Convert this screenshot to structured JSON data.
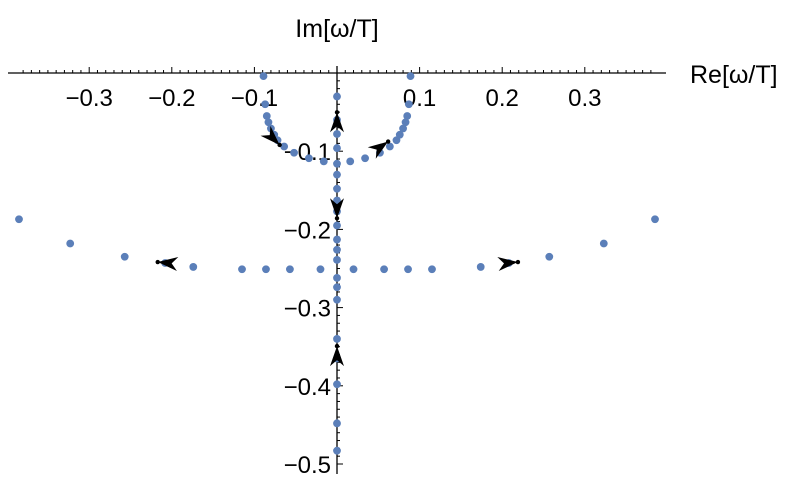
{
  "chart_data": {
    "type": "scatter",
    "xlabel": "Re[ω/T]",
    "ylabel": "Im[ω/T]",
    "xlim": [
      -0.39,
      0.39
    ],
    "ylim": [
      -0.5,
      0.0
    ],
    "x_ticks": [
      {
        "value": -0.3,
        "label": "−0.3"
      },
      {
        "value": -0.2,
        "label": "−0.2"
      },
      {
        "value": -0.1,
        "label": "−0.1"
      },
      {
        "value": 0.1,
        "label": "0.1"
      },
      {
        "value": 0.2,
        "label": "0.2"
      },
      {
        "value": 0.3,
        "label": "0.3"
      }
    ],
    "y_ticks": [
      {
        "value": -0.1,
        "label": "−0.1"
      },
      {
        "value": -0.2,
        "label": "−0.2"
      },
      {
        "value": -0.3,
        "label": "−0.3"
      },
      {
        "value": -0.4,
        "label": "−0.4"
      },
      {
        "value": -0.5,
        "label": "−0.5"
      }
    ],
    "point_color": "#5b7fb9",
    "arrow_color": "#000000",
    "grid": false,
    "series": [
      {
        "values": [
          {
            "x": -0.089,
            "y": -0.004
          },
          {
            "x": -0.087,
            "y": -0.04
          },
          {
            "x": -0.085,
            "y": -0.055
          },
          {
            "x": -0.083,
            "y": -0.063
          },
          {
            "x": -0.08,
            "y": -0.071
          },
          {
            "x": -0.076,
            "y": -0.079
          },
          {
            "x": -0.072,
            "y": -0.086
          },
          {
            "x": -0.064,
            "y": -0.094
          },
          {
            "x": -0.052,
            "y": -0.102
          },
          {
            "x": -0.034,
            "y": -0.109
          },
          {
            "x": -0.016,
            "y": -0.113
          },
          {
            "x": 0.0,
            "y": -0.116
          },
          {
            "x": 0.016,
            "y": -0.113
          },
          {
            "x": 0.034,
            "y": -0.109
          },
          {
            "x": 0.052,
            "y": -0.102
          },
          {
            "x": 0.064,
            "y": -0.094
          },
          {
            "x": 0.072,
            "y": -0.086
          },
          {
            "x": 0.076,
            "y": -0.079
          },
          {
            "x": 0.08,
            "y": -0.071
          },
          {
            "x": 0.083,
            "y": -0.063
          },
          {
            "x": 0.085,
            "y": -0.055
          },
          {
            "x": 0.087,
            "y": -0.04
          },
          {
            "x": 0.089,
            "y": -0.004
          },
          {
            "x": 0.0,
            "y": -0.03
          },
          {
            "x": 0.0,
            "y": -0.06
          },
          {
            "x": 0.0,
            "y": -0.078
          },
          {
            "x": 0.0,
            "y": -0.096
          },
          {
            "x": 0.0,
            "y": -0.13
          },
          {
            "x": 0.0,
            "y": -0.148
          },
          {
            "x": 0.0,
            "y": -0.163
          },
          {
            "x": 0.0,
            "y": -0.177
          },
          {
            "x": 0.0,
            "y": -0.195
          },
          {
            "x": 0.0,
            "y": -0.213
          },
          {
            "x": 0.0,
            "y": -0.226
          },
          {
            "x": 0.0,
            "y": -0.239
          },
          {
            "x": 0.0,
            "y": -0.262
          },
          {
            "x": 0.0,
            "y": -0.274
          },
          {
            "x": 0.0,
            "y": -0.29
          },
          {
            "x": 0.0,
            "y": -0.34
          },
          {
            "x": 0.0,
            "y": -0.365
          },
          {
            "x": 0.0,
            "y": -0.398
          },
          {
            "x": 0.0,
            "y": -0.448
          },
          {
            "x": 0.0,
            "y": -0.483
          },
          {
            "x": -0.02,
            "y": -0.251
          },
          {
            "x": -0.057,
            "y": -0.251
          },
          {
            "x": -0.086,
            "y": -0.251
          },
          {
            "x": -0.115,
            "y": -0.251
          },
          {
            "x": -0.174,
            "y": -0.248
          },
          {
            "x": -0.208,
            "y": -0.243
          },
          {
            "x": -0.257,
            "y": -0.235
          },
          {
            "x": -0.323,
            "y": -0.218
          },
          {
            "x": -0.385,
            "y": -0.187
          },
          {
            "x": 0.02,
            "y": -0.251
          },
          {
            "x": 0.057,
            "y": -0.251
          },
          {
            "x": 0.086,
            "y": -0.251
          },
          {
            "x": 0.115,
            "y": -0.251
          },
          {
            "x": 0.174,
            "y": -0.248
          },
          {
            "x": 0.208,
            "y": -0.243
          },
          {
            "x": 0.257,
            "y": -0.235
          },
          {
            "x": 0.323,
            "y": -0.218
          },
          {
            "x": 0.385,
            "y": -0.187
          }
        ]
      }
    ],
    "arrows": [
      {
        "x": -0.078,
        "y": -0.083,
        "dx": 1,
        "dy": -1
      },
      {
        "x": 0.052,
        "y": -0.095,
        "dx": 1,
        "dy": 0.7
      },
      {
        "x": 0.0,
        "y": -0.063,
        "dx": 0,
        "dy": 1
      },
      {
        "x": 0.0,
        "y": -0.173,
        "dx": 0,
        "dy": -1
      },
      {
        "x": -0.205,
        "y": -0.243,
        "dx": -1,
        "dy": 0.1
      },
      {
        "x": 0.207,
        "y": -0.243,
        "dx": 1,
        "dy": 0.1
      },
      {
        "x": 0.0,
        "y": -0.362,
        "dx": 0,
        "dy": 1
      }
    ]
  }
}
